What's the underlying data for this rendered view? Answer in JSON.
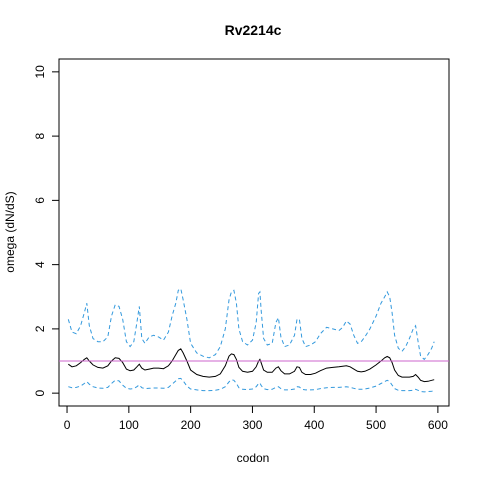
{
  "chart_data": {
    "type": "line",
    "title": "Rv2214c",
    "xlabel": "codon",
    "ylabel": "omega (dN/dS)",
    "xlim": [
      -13,
      618
    ],
    "ylim": [
      -0.4,
      10.4
    ],
    "x_ticks": [
      0,
      100,
      200,
      300,
      400,
      500,
      600
    ],
    "y_ticks": [
      0,
      2,
      4,
      6,
      8,
      10
    ],
    "grid": false,
    "reference_line": {
      "y": 1,
      "color": "#cc66cc"
    },
    "colors": {
      "estimate": "#000000",
      "bounds": "#3399dd",
      "reference": "#cc66cc"
    },
    "series": [
      {
        "role": "upper-bound",
        "style": "dashed",
        "x": [
          2,
          8,
          15,
          22,
          28,
          32,
          36,
          42,
          50,
          58,
          66,
          72,
          78,
          84,
          90,
          96,
          102,
          108,
          113,
          117,
          121,
          126,
          133,
          140,
          148,
          156,
          164,
          170,
          176,
          180,
          184,
          188,
          194,
          200,
          210,
          220,
          230,
          240,
          248,
          256,
          262,
          266,
          270,
          274,
          278,
          284,
          292,
          300,
          306,
          310,
          312,
          314,
          318,
          324,
          332,
          338,
          342,
          346,
          352,
          360,
          368,
          372,
          376,
          380,
          386,
          394,
          402,
          410,
          420,
          430,
          440,
          446,
          452,
          458,
          464,
          470,
          476,
          482,
          490,
          500,
          508,
          514,
          518,
          522,
          526,
          530,
          536,
          542,
          548,
          554,
          560,
          564,
          568,
          572,
          578,
          584,
          590,
          594
        ],
        "y": [
          2.3,
          1.9,
          1.85,
          2.1,
          2.5,
          2.8,
          2.1,
          1.7,
          1.6,
          1.6,
          1.75,
          2.4,
          2.75,
          2.7,
          2.3,
          1.6,
          1.45,
          1.6,
          2.2,
          2.7,
          1.7,
          1.55,
          1.75,
          1.8,
          1.75,
          1.65,
          1.9,
          2.4,
          2.8,
          3.2,
          3.25,
          2.9,
          2.3,
          1.55,
          1.25,
          1.15,
          1.1,
          1.2,
          1.45,
          2.0,
          2.9,
          3.15,
          3.2,
          2.8,
          2.0,
          1.6,
          1.5,
          1.65,
          2.2,
          3.1,
          3.15,
          2.6,
          1.7,
          1.5,
          1.55,
          2.2,
          2.35,
          1.75,
          1.45,
          1.5,
          1.8,
          2.3,
          2.3,
          1.7,
          1.45,
          1.5,
          1.6,
          1.85,
          2.05,
          2.0,
          1.95,
          2.05,
          2.25,
          2.15,
          1.8,
          1.55,
          1.6,
          1.75,
          2.0,
          2.4,
          2.8,
          3.0,
          3.15,
          3.0,
          2.5,
          1.8,
          1.4,
          1.3,
          1.45,
          1.7,
          2.0,
          2.1,
          1.6,
          1.15,
          1.05,
          1.2,
          1.4,
          1.6
        ]
      },
      {
        "role": "estimate",
        "style": "solid",
        "x": [
          2,
          8,
          15,
          22,
          28,
          32,
          36,
          42,
          50,
          58,
          66,
          72,
          78,
          84,
          90,
          96,
          102,
          108,
          113,
          117,
          121,
          126,
          133,
          140,
          148,
          156,
          164,
          170,
          176,
          180,
          184,
          188,
          194,
          200,
          210,
          220,
          230,
          240,
          248,
          256,
          262,
          266,
          270,
          274,
          278,
          284,
          292,
          300,
          306,
          310,
          312,
          314,
          318,
          324,
          332,
          338,
          342,
          346,
          352,
          360,
          368,
          372,
          376,
          380,
          386,
          394,
          402,
          410,
          420,
          430,
          440,
          446,
          452,
          458,
          464,
          470,
          476,
          482,
          490,
          500,
          508,
          514,
          518,
          522,
          526,
          530,
          536,
          542,
          548,
          554,
          560,
          564,
          568,
          572,
          578,
          584,
          590,
          594
        ],
        "y": [
          0.9,
          0.82,
          0.85,
          0.95,
          1.05,
          1.1,
          1.0,
          0.88,
          0.8,
          0.78,
          0.85,
          1.0,
          1.1,
          1.08,
          0.95,
          0.75,
          0.7,
          0.72,
          0.82,
          0.9,
          0.78,
          0.72,
          0.75,
          0.78,
          0.78,
          0.76,
          0.85,
          1.0,
          1.2,
          1.33,
          1.38,
          1.25,
          1.0,
          0.72,
          0.58,
          0.52,
          0.5,
          0.52,
          0.6,
          0.85,
          1.15,
          1.22,
          1.2,
          1.05,
          0.8,
          0.68,
          0.65,
          0.68,
          0.82,
          1.0,
          1.05,
          0.95,
          0.72,
          0.65,
          0.65,
          0.78,
          0.82,
          0.7,
          0.6,
          0.6,
          0.68,
          0.82,
          0.8,
          0.65,
          0.58,
          0.58,
          0.62,
          0.7,
          0.78,
          0.8,
          0.82,
          0.84,
          0.85,
          0.82,
          0.75,
          0.68,
          0.66,
          0.68,
          0.75,
          0.88,
          1.0,
          1.1,
          1.14,
          1.1,
          0.95,
          0.72,
          0.55,
          0.5,
          0.5,
          0.5,
          0.52,
          0.58,
          0.5,
          0.4,
          0.36,
          0.37,
          0.4,
          0.42
        ]
      },
      {
        "role": "lower-bound",
        "style": "dashed",
        "x": [
          2,
          8,
          15,
          22,
          28,
          32,
          36,
          42,
          50,
          58,
          66,
          72,
          78,
          84,
          90,
          96,
          102,
          108,
          113,
          117,
          121,
          126,
          133,
          140,
          148,
          156,
          164,
          170,
          176,
          180,
          184,
          188,
          194,
          200,
          210,
          220,
          230,
          240,
          248,
          256,
          262,
          266,
          270,
          274,
          278,
          284,
          292,
          300,
          306,
          310,
          312,
          314,
          318,
          324,
          332,
          338,
          342,
          346,
          352,
          360,
          368,
          372,
          376,
          380,
          386,
          394,
          402,
          410,
          420,
          430,
          440,
          446,
          452,
          458,
          464,
          470,
          476,
          482,
          490,
          500,
          508,
          514,
          518,
          522,
          526,
          530,
          536,
          542,
          548,
          554,
          560,
          564,
          568,
          572,
          578,
          584,
          590,
          594
        ],
        "y": [
          0.2,
          0.17,
          0.18,
          0.22,
          0.3,
          0.36,
          0.28,
          0.2,
          0.16,
          0.15,
          0.18,
          0.3,
          0.4,
          0.38,
          0.25,
          0.15,
          0.13,
          0.14,
          0.2,
          0.26,
          0.17,
          0.14,
          0.15,
          0.16,
          0.16,
          0.15,
          0.18,
          0.28,
          0.38,
          0.45,
          0.46,
          0.38,
          0.22,
          0.13,
          0.1,
          0.08,
          0.08,
          0.09,
          0.12,
          0.2,
          0.35,
          0.42,
          0.4,
          0.3,
          0.17,
          0.12,
          0.11,
          0.13,
          0.2,
          0.3,
          0.32,
          0.24,
          0.14,
          0.11,
          0.12,
          0.18,
          0.2,
          0.14,
          0.1,
          0.1,
          0.13,
          0.2,
          0.19,
          0.12,
          0.1,
          0.1,
          0.11,
          0.14,
          0.17,
          0.18,
          0.18,
          0.19,
          0.2,
          0.18,
          0.15,
          0.12,
          0.12,
          0.13,
          0.16,
          0.22,
          0.3,
          0.36,
          0.4,
          0.36,
          0.25,
          0.14,
          0.09,
          0.08,
          0.08,
          0.08,
          0.09,
          0.12,
          0.09,
          0.05,
          0.04,
          0.05,
          0.06,
          0.07
        ]
      }
    ]
  }
}
